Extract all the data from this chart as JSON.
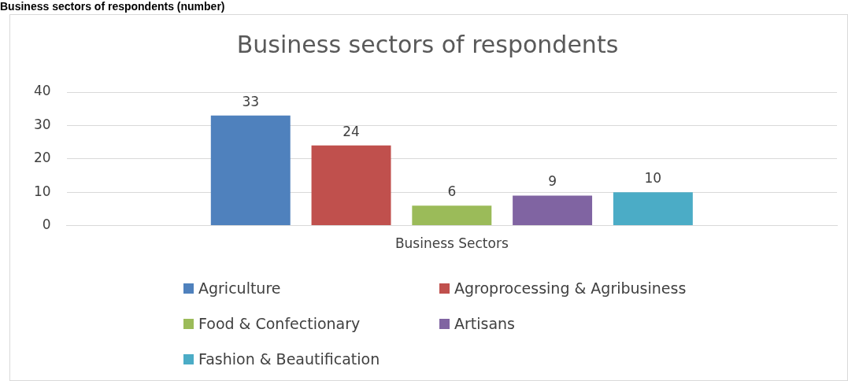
{
  "chart_data": {
    "type": "bar",
    "title": "Business sectors of respondents",
    "annotations": [
      "Business sectors of respondents (number)"
    ],
    "categories": [
      "Business Sectors"
    ],
    "series": [
      {
        "name": "Agriculture",
        "color": "#4f81bd",
        "values": [
          33
        ]
      },
      {
        "name": "Agroprocessing & Agribusiness",
        "color": "#c0504d",
        "values": [
          24
        ]
      },
      {
        "name": "Food & Confectionary",
        "color": "#9bbb59",
        "values": [
          6
        ]
      },
      {
        "name": "Artisans",
        "color": "#8064a2",
        "values": [
          9
        ]
      },
      {
        "name": "Fashion & Beautification",
        "color": "#4bacc6",
        "values": [
          10
        ]
      }
    ],
    "ylim": [
      0,
      40
    ],
    "yticks": [
      0,
      10,
      20,
      30,
      40
    ],
    "grid": "y",
    "legend": "bottom",
    "data_labels": true
  }
}
